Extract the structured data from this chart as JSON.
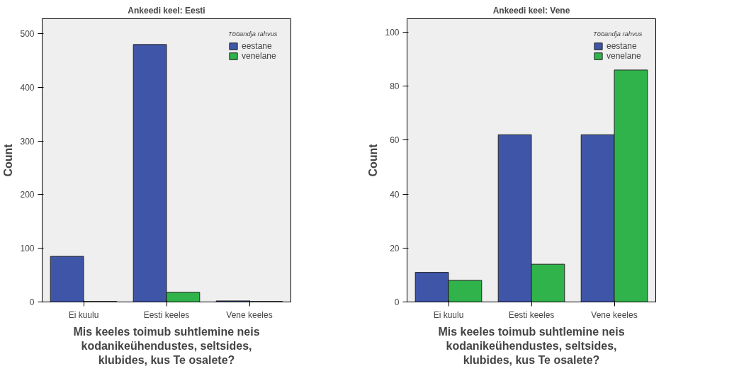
{
  "chart_data": [
    {
      "type": "bar",
      "title": "Ankeedi keel: Eesti",
      "xlabel": "Mis keeles toimub suhtlemine neis kodanikeühendustes, seltsides, klubides, kus Te osalete?",
      "ylabel": "Count",
      "legend_title": "Tööandja rahvus",
      "categories": [
        "Ei kuulu",
        "Eesti keeles",
        "Vene keeles"
      ],
      "series": [
        {
          "name": "eestane",
          "color": "#3f56a8",
          "values": [
            85,
            480,
            2
          ]
        },
        {
          "name": "venelane",
          "color": "#2fb34a",
          "values": [
            1,
            18,
            1
          ]
        }
      ],
      "ylim": [
        0,
        528
      ],
      "yticks": [
        0,
        100,
        200,
        300,
        400,
        500
      ],
      "grid": false,
      "legend": "top right"
    },
    {
      "type": "bar",
      "title": "Ankeedi keel: Vene",
      "xlabel": "Mis keeles toimub suhtlemine neis kodanikeühendustes, seltsides, klubides, kus Te osalete?",
      "ylabel": "Count",
      "legend_title": "Tööandja rahvus",
      "categories": [
        "Ei kuulu",
        "Eesti keeles",
        "Vene keeles"
      ],
      "series": [
        {
          "name": "eestane",
          "color": "#3f56a8",
          "values": [
            11,
            62,
            62
          ]
        },
        {
          "name": "venelane",
          "color": "#2fb34a",
          "values": [
            8,
            14,
            86
          ]
        }
      ],
      "ylim": [
        0,
        105
      ],
      "yticks": [
        0,
        20,
        40,
        60,
        80,
        100
      ],
      "grid": false,
      "legend": "top right"
    }
  ]
}
